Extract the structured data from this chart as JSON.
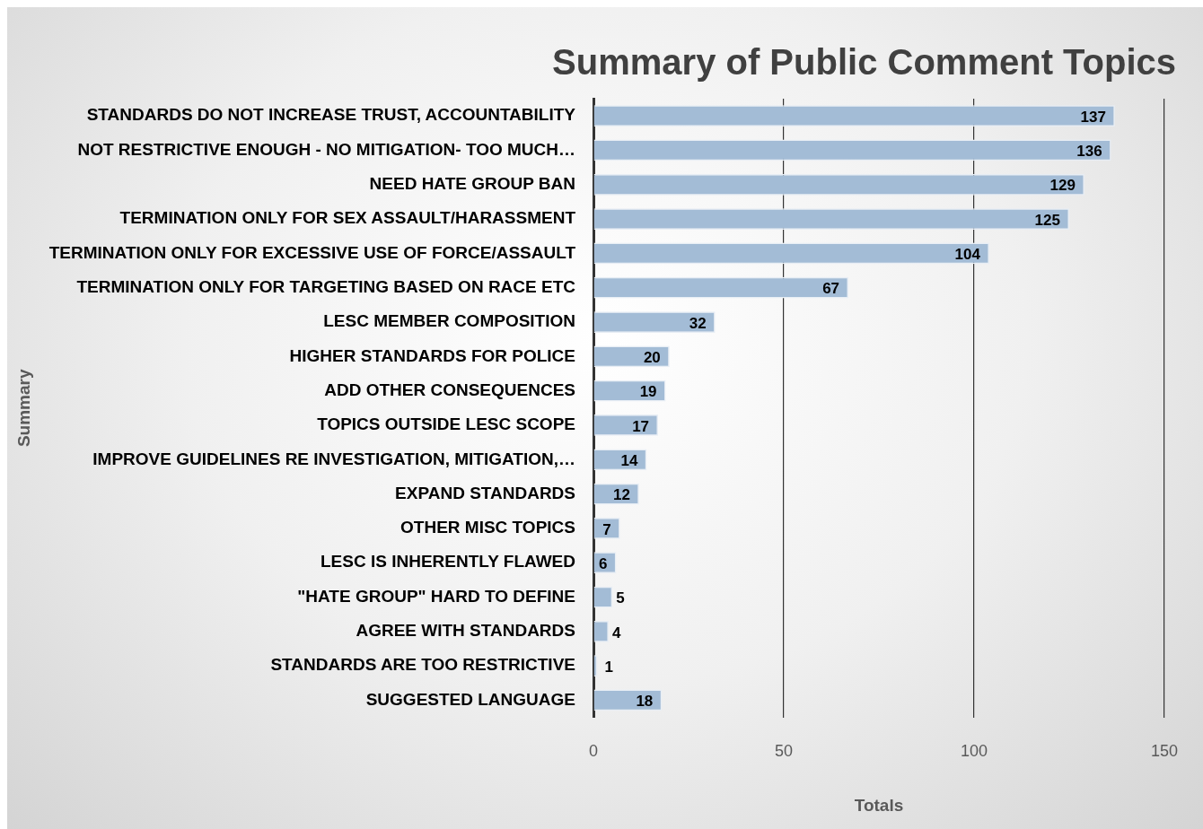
{
  "chart_data": {
    "type": "bar",
    "orientation": "horizontal",
    "title": "Summary of Public Comment Topics",
    "xlabel": "Totals",
    "ylabel": "Summary",
    "categories": [
      "STANDARDS DO NOT INCREASE TRUST, ACCOUNTABILITY",
      "NOT RESTRICTIVE ENOUGH - NO MITIGATION- TOO MUCH…",
      "NEED HATE GROUP BAN",
      "TERMINATION ONLY FOR SEX ASSAULT/HARASSMENT",
      "TERMINATION ONLY FOR EXCESSIVE USE OF FORCE/ASSAULT",
      "TERMINATION ONLY FOR TARGETING BASED ON RACE ETC",
      "LESC MEMBER COMPOSITION",
      "HIGHER STANDARDS FOR POLICE",
      "ADD OTHER CONSEQUENCES",
      "TOPICS OUTSIDE LESC SCOPE",
      "IMPROVE GUIDELINES RE INVESTIGATION, MITIGATION,…",
      "EXPAND STANDARDS",
      "OTHER MISC TOPICS",
      "LESC IS INHERENTLY FLAWED",
      "\"HATE GROUP\" HARD TO DEFINE",
      "AGREE WITH STANDARDS",
      "STANDARDS ARE TOO RESTRICTIVE",
      "SUGGESTED LANGUAGE"
    ],
    "values": [
      137,
      136,
      129,
      125,
      104,
      67,
      32,
      20,
      19,
      17,
      14,
      12,
      7,
      6,
      5,
      4,
      1,
      18
    ],
    "color": "#a3bcd6",
    "data_labels": true,
    "grid": "x",
    "legend": false,
    "xlim": [
      0,
      150
    ],
    "xticks": [
      0,
      50,
      100,
      150
    ]
  }
}
